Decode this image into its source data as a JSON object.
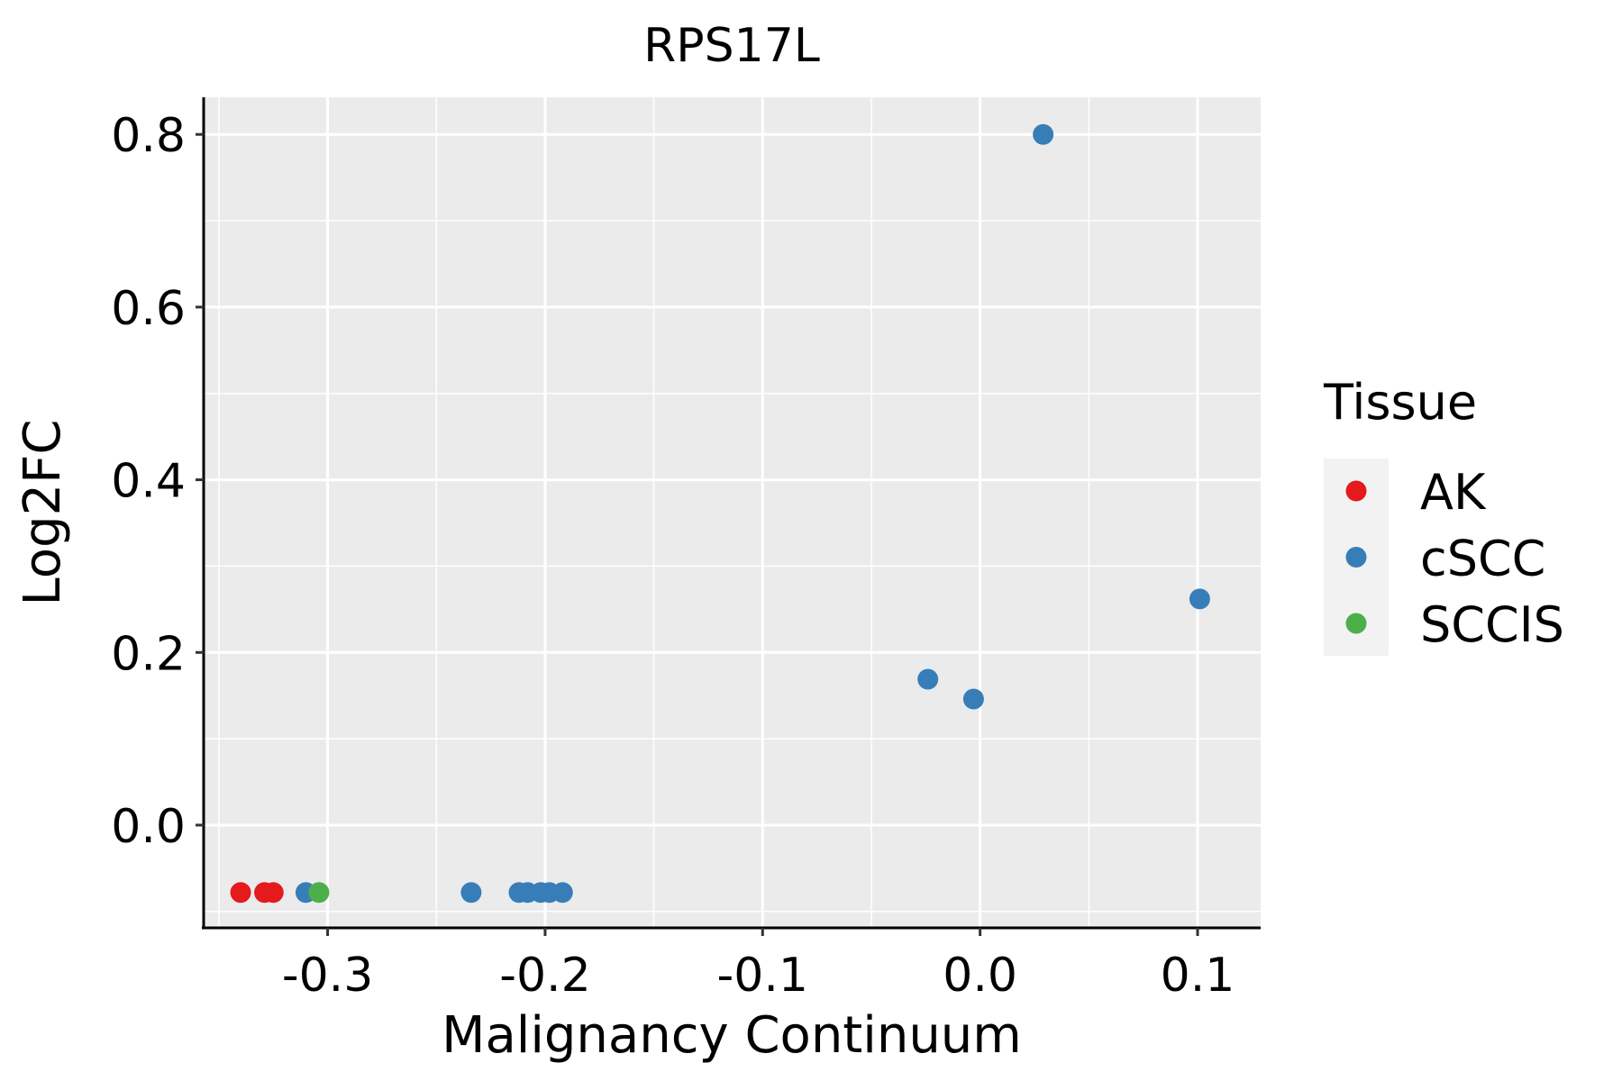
{
  "chart_data": {
    "type": "scatter",
    "title": "RPS17L",
    "xlabel": "Malignancy Continuum",
    "ylabel": "Log2FC",
    "xlim": [
      -0.357,
      0.129
    ],
    "ylim": [
      -0.119,
      0.843
    ],
    "xticks": [
      -0.3,
      -0.2,
      -0.1,
      0.0,
      0.1
    ],
    "xtick_labels": [
      "-0.3",
      "-0.2",
      "-0.1",
      "0.0",
      "0.1"
    ],
    "yticks": [
      0.0,
      0.2,
      0.4,
      0.6,
      0.8
    ],
    "ytick_labels": [
      "0.0",
      "0.2",
      "0.4",
      "0.6",
      "0.8"
    ],
    "grid": true,
    "legend": {
      "title": "Tissue",
      "placement": "right"
    },
    "series": [
      {
        "name": "AK",
        "color": "#E41A1C",
        "points": [
          [
            -0.34,
            -0.078
          ],
          [
            -0.329,
            -0.078
          ],
          [
            -0.325,
            -0.078
          ]
        ]
      },
      {
        "name": "cSCC",
        "color": "#377EB8",
        "points": [
          [
            -0.31,
            -0.078
          ],
          [
            -0.234,
            -0.078
          ],
          [
            -0.212,
            -0.078
          ],
          [
            -0.208,
            -0.078
          ],
          [
            -0.202,
            -0.078
          ],
          [
            -0.198,
            -0.078
          ],
          [
            -0.192,
            -0.078
          ],
          [
            -0.024,
            0.169
          ],
          [
            -0.003,
            0.146
          ],
          [
            0.029,
            0.8
          ],
          [
            0.101,
            0.262
          ]
        ]
      },
      {
        "name": "SCCIS",
        "color": "#4DAF4A",
        "points": [
          [
            -0.304,
            -0.078
          ]
        ]
      }
    ],
    "draw_order": [
      [
        "AK",
        0
      ],
      [
        "AK",
        1
      ],
      [
        "AK",
        2
      ],
      [
        "cSCC",
        0
      ],
      [
        "SCCIS",
        0
      ],
      [
        "cSCC",
        1
      ],
      [
        "cSCC",
        2
      ],
      [
        "cSCC",
        3
      ],
      [
        "cSCC",
        4
      ],
      [
        "cSCC",
        5
      ],
      [
        "cSCC",
        6
      ],
      [
        "cSCC",
        7
      ],
      [
        "cSCC",
        8
      ],
      [
        "cSCC",
        9
      ],
      [
        "cSCC",
        10
      ]
    ]
  }
}
